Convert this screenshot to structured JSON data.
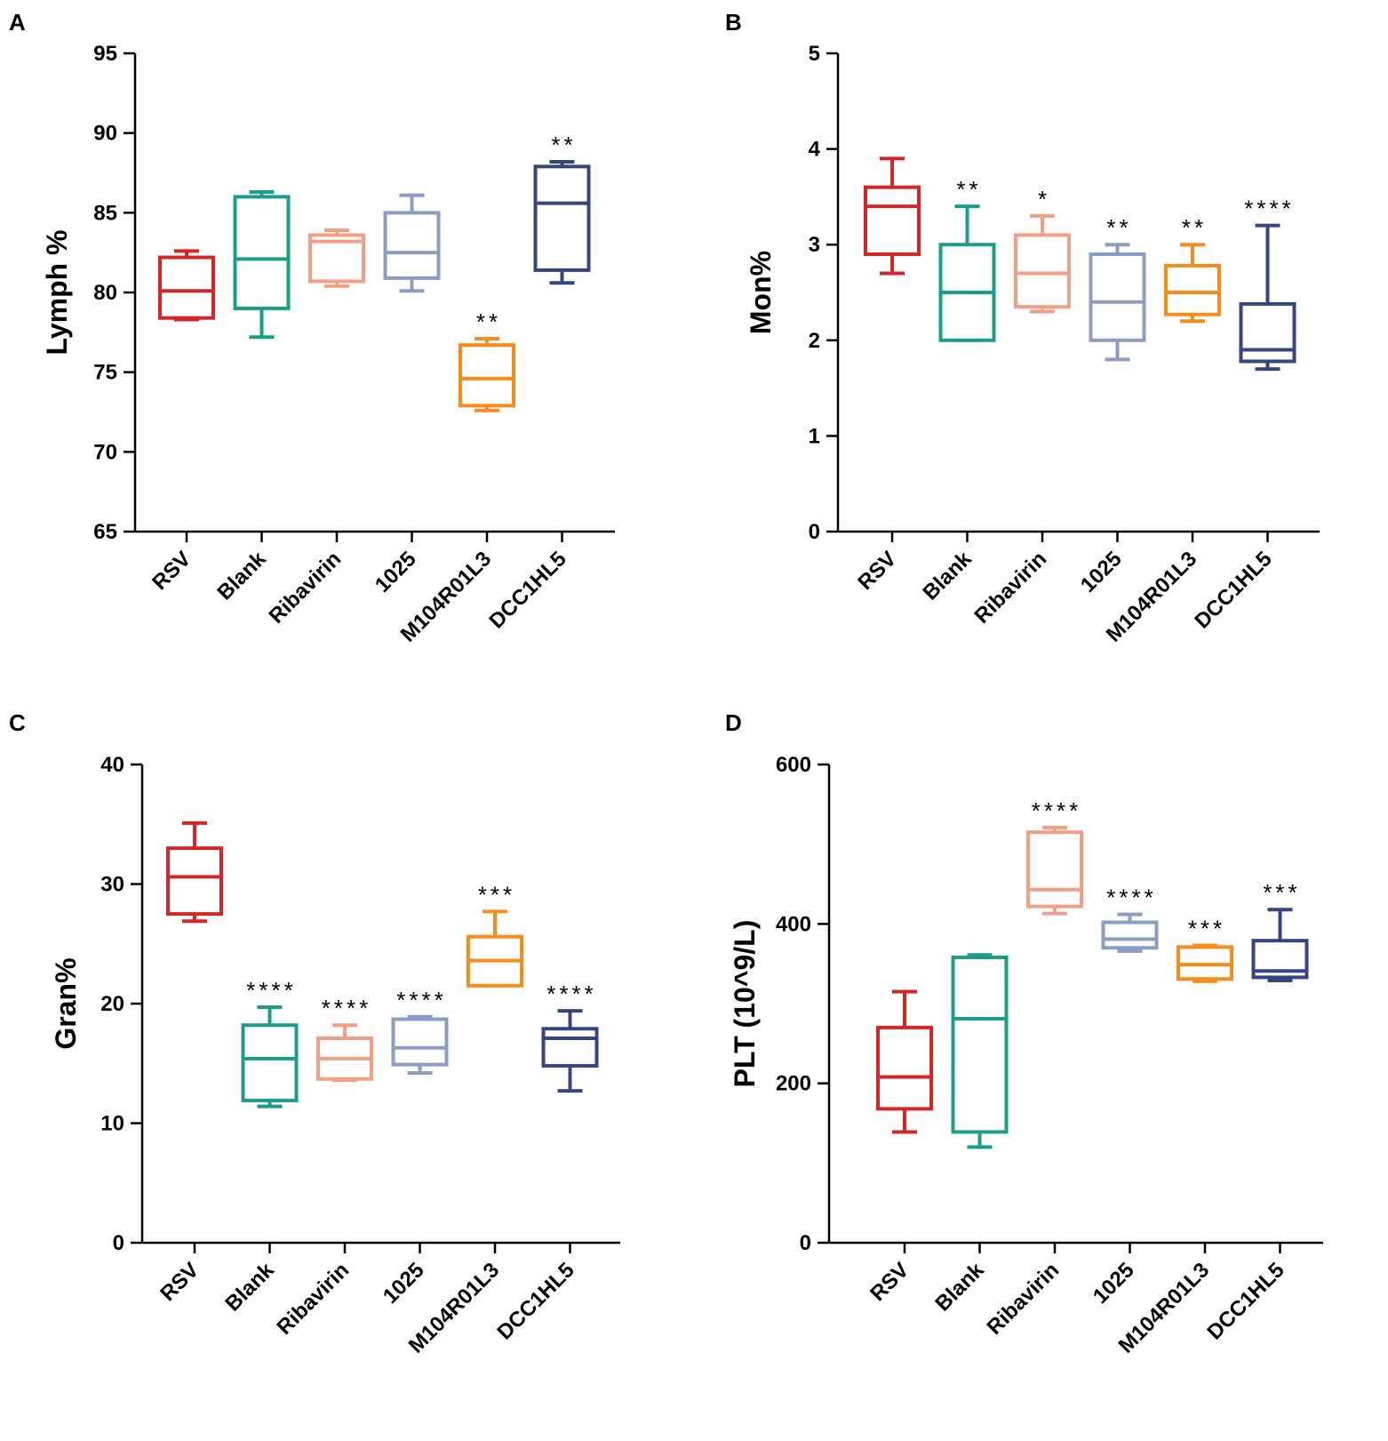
{
  "colors": {
    "RSV": "#d42626",
    "Blank": "#1a9d8a",
    "Ribavirin": "#f2a083",
    "1025": "#8c9dc3",
    "M104R01L3": "#f88c1c",
    "DCC1HL5": "#35467f"
  },
  "chart_data": [
    {
      "panel": "A",
      "type": "box",
      "ylabel": "Lymph %",
      "ylim": [
        65,
        95
      ],
      "yticks": [
        65,
        70,
        75,
        80,
        85,
        90,
        95
      ],
      "categories": [
        "RSV",
        "Blank",
        "Ribavirin",
        "1025",
        "M104R01L3",
        "DCC1HL5"
      ],
      "boxes": [
        {
          "min": 78.3,
          "q1": 78.4,
          "median": 80.1,
          "q3": 82.2,
          "max": 82.6,
          "sig": ""
        },
        {
          "min": 77.2,
          "q1": 79.0,
          "median": 82.1,
          "q3": 86.0,
          "max": 86.3,
          "sig": ""
        },
        {
          "min": 80.4,
          "q1": 80.7,
          "median": 83.2,
          "q3": 83.6,
          "max": 83.9,
          "sig": ""
        },
        {
          "min": 80.1,
          "q1": 80.9,
          "median": 82.5,
          "q3": 85.0,
          "max": 86.1,
          "sig": ""
        },
        {
          "min": 72.6,
          "q1": 72.9,
          "median": 74.6,
          "q3": 76.7,
          "max": 77.1,
          "sig": "**"
        },
        {
          "min": 80.6,
          "q1": 81.4,
          "median": 85.6,
          "q3": 87.9,
          "max": 88.2,
          "sig": "**"
        }
      ]
    },
    {
      "panel": "B",
      "type": "box",
      "ylabel": "Mon%",
      "ylim": [
        0,
        5
      ],
      "yticks": [
        0,
        1,
        2,
        3,
        4,
        5
      ],
      "categories": [
        "RSV",
        "Blank",
        "Ribavirin",
        "1025",
        "M104R01L3",
        "DCC1HL5"
      ],
      "boxes": [
        {
          "min": 2.7,
          "q1": 2.9,
          "median": 3.4,
          "q3": 3.6,
          "max": 3.9,
          "sig": ""
        },
        {
          "min": 2.0,
          "q1": 2.0,
          "median": 2.5,
          "q3": 3.0,
          "max": 3.4,
          "sig": "**"
        },
        {
          "min": 2.3,
          "q1": 2.35,
          "median": 2.7,
          "q3": 3.1,
          "max": 3.3,
          "sig": "*"
        },
        {
          "min": 1.8,
          "q1": 2.0,
          "median": 2.4,
          "q3": 2.9,
          "max": 3.0,
          "sig": "**"
        },
        {
          "min": 2.2,
          "q1": 2.27,
          "median": 2.5,
          "q3": 2.78,
          "max": 3.0,
          "sig": "**"
        },
        {
          "min": 1.7,
          "q1": 1.78,
          "median": 1.9,
          "q3": 2.38,
          "max": 3.2,
          "sig": "****"
        }
      ]
    },
    {
      "panel": "C",
      "type": "box",
      "ylabel": "Gran%",
      "ylim": [
        0,
        40
      ],
      "yticks": [
        0,
        10,
        20,
        30,
        40
      ],
      "categories": [
        "RSV",
        "Blank",
        "Ribavirin",
        "1025",
        "M104R01L3",
        "DCC1HL5"
      ],
      "boxes": [
        {
          "min": 26.9,
          "q1": 27.5,
          "median": 30.6,
          "q3": 33.0,
          "max": 35.1,
          "sig": ""
        },
        {
          "min": 11.4,
          "q1": 11.9,
          "median": 15.4,
          "q3": 18.2,
          "max": 19.7,
          "sig": "****"
        },
        {
          "min": 13.6,
          "q1": 13.7,
          "median": 15.4,
          "q3": 17.1,
          "max": 18.2,
          "sig": "****"
        },
        {
          "min": 14.2,
          "q1": 14.9,
          "median": 16.3,
          "q3": 18.7,
          "max": 18.9,
          "sig": "****"
        },
        {
          "min": 21.5,
          "q1": 21.5,
          "median": 23.6,
          "q3": 25.6,
          "max": 27.7,
          "sig": "***"
        },
        {
          "min": 12.7,
          "q1": 14.8,
          "median": 17.1,
          "q3": 17.9,
          "max": 19.4,
          "sig": "****"
        }
      ]
    },
    {
      "panel": "D",
      "type": "box",
      "ylabel": "PLT (10^9/L)",
      "ylim": [
        0,
        600
      ],
      "yticks": [
        0,
        200,
        400,
        600
      ],
      "categories": [
        "RSV",
        "Blank",
        "Ribavirin",
        "1025",
        "M104R01L3",
        "DCC1HL5"
      ],
      "boxes": [
        {
          "min": 139,
          "q1": 168,
          "median": 208,
          "q3": 270,
          "max": 315,
          "sig": ""
        },
        {
          "min": 120,
          "q1": 139,
          "median": 281,
          "q3": 358,
          "max": 361,
          "sig": ""
        },
        {
          "min": 413,
          "q1": 422,
          "median": 443,
          "q3": 515,
          "max": 521,
          "sig": "****"
        },
        {
          "min": 366,
          "q1": 370,
          "median": 381,
          "q3": 402,
          "max": 412,
          "sig": "****"
        },
        {
          "min": 328,
          "q1": 331,
          "median": 349,
          "q3": 371,
          "max": 373,
          "sig": "***"
        },
        {
          "min": 329,
          "q1": 333,
          "median": 341,
          "q3": 379,
          "max": 418,
          "sig": "***"
        }
      ]
    }
  ]
}
